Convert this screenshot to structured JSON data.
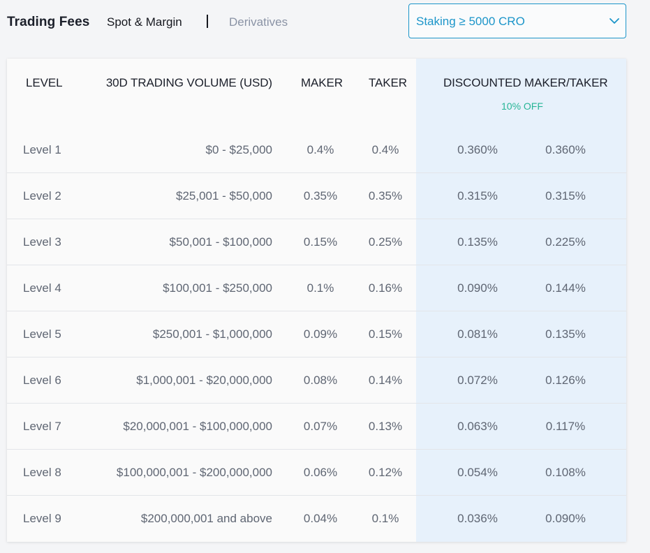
{
  "header": {
    "title": "Trading Fees",
    "tabs": [
      {
        "label": "Spot & Margin",
        "active": true
      },
      {
        "label": "Derivatives",
        "active": false
      }
    ],
    "select": {
      "value": "Staking ≥ 5000 CRO",
      "icon": "chevron-down-icon"
    }
  },
  "table": {
    "columns": {
      "level": "LEVEL",
      "volume": "30D TRADING VOLUME (USD)",
      "maker": "MAKER",
      "taker": "TAKER",
      "discounted": "DISCOUNTED MAKER/TAKER"
    },
    "discount_label": "10% OFF",
    "rows": [
      {
        "level": "Level 1",
        "volume": "$0 - $25,000",
        "maker": "0.4%",
        "taker": "0.4%",
        "disc_maker": "0.360%",
        "disc_taker": "0.360%"
      },
      {
        "level": "Level 2",
        "volume": "$25,001 - $50,000",
        "maker": "0.35%",
        "taker": "0.35%",
        "disc_maker": "0.315%",
        "disc_taker": "0.315%"
      },
      {
        "level": "Level 3",
        "volume": "$50,001 - $100,000",
        "maker": "0.15%",
        "taker": "0.25%",
        "disc_maker": "0.135%",
        "disc_taker": "0.225%"
      },
      {
        "level": "Level 4",
        "volume": "$100,001 - $250,000",
        "maker": "0.1%",
        "taker": "0.16%",
        "disc_maker": "0.090%",
        "disc_taker": "0.144%"
      },
      {
        "level": "Level 5",
        "volume": "$250,001 - $1,000,000",
        "maker": "0.09%",
        "taker": "0.15%",
        "disc_maker": "0.081%",
        "disc_taker": "0.135%"
      },
      {
        "level": "Level 6",
        "volume": "$1,000,001 - $20,000,000",
        "maker": "0.08%",
        "taker": "0.14%",
        "disc_maker": "0.072%",
        "disc_taker": "0.126%"
      },
      {
        "level": "Level 7",
        "volume": "$20,000,001 - $100,000,000",
        "maker": "0.07%",
        "taker": "0.13%",
        "disc_maker": "0.063%",
        "disc_taker": "0.117%"
      },
      {
        "level": "Level 8",
        "volume": "$100,000,001 - $200,000,000",
        "maker": "0.06%",
        "taker": "0.12%",
        "disc_maker": "0.054%",
        "disc_taker": "0.108%"
      },
      {
        "level": "Level 9",
        "volume": "$200,000,001 and above",
        "maker": "0.04%",
        "taker": "0.1%",
        "disc_maker": "0.036%",
        "disc_taker": "0.090%"
      }
    ]
  },
  "colors": {
    "accent": "#1c95c9",
    "discount_green": "#26b596",
    "discount_bg": "#e7f1fb"
  }
}
